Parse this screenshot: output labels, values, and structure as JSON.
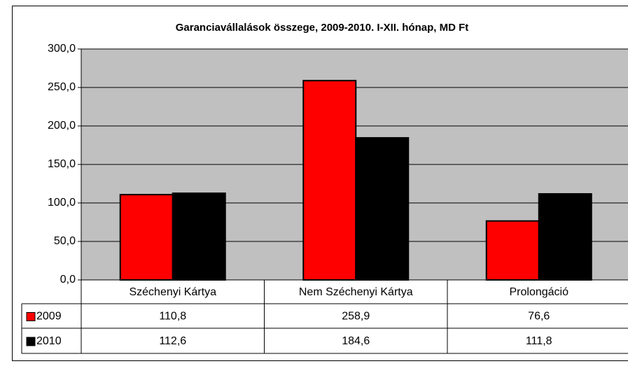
{
  "chart_data": {
    "type": "bar",
    "title": "Garanciavállalások összege, 2009-2010. I-XII. hónap, MD Ft",
    "categories": [
      "Széchenyi Kártya",
      "Nem Széchenyi Kártya",
      "Prolongáció"
    ],
    "series": [
      {
        "name": "2009",
        "color": "#ff0000",
        "values": [
          110.8,
          258.9,
          76.6
        ],
        "value_labels": [
          "110,8",
          "258,9",
          "76,6"
        ]
      },
      {
        "name": "2010",
        "color": "#000000",
        "values": [
          112.6,
          184.6,
          111.8
        ],
        "value_labels": [
          "112,6",
          "184,6",
          "111,8"
        ]
      }
    ],
    "ylim": [
      0,
      300
    ],
    "yticks": [
      {
        "value": 0,
        "label": "0,0"
      },
      {
        "value": 50,
        "label": "50,0"
      },
      {
        "value": 100,
        "label": "100,0"
      },
      {
        "value": 150,
        "label": "150,0"
      },
      {
        "value": 200,
        "label": "200,0"
      },
      {
        "value": 250,
        "label": "250,0"
      },
      {
        "value": 300,
        "label": "300,0"
      }
    ],
    "grid": true,
    "plot_background": "#c0c0c0"
  }
}
